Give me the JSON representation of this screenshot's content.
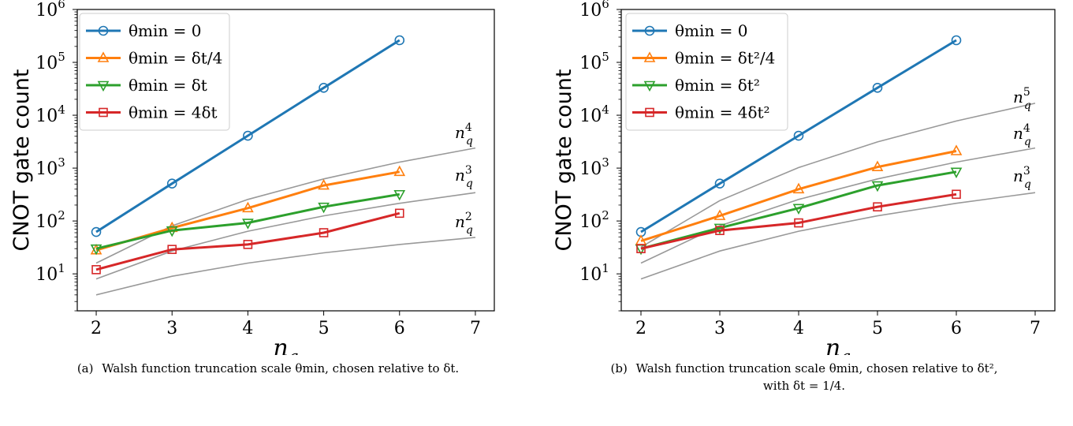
{
  "chart_data": [
    {
      "type": "line",
      "panel": "a",
      "ylabel": "CNOT gate count",
      "xlabel": "n_q",
      "xlim": [
        1.75,
        7.25
      ],
      "yscale": "log",
      "ylim": [
        2,
        1000000
      ],
      "xticks": [
        "2",
        "3",
        "4",
        "5",
        "6",
        "7"
      ],
      "yticks": [
        {
          "base": "10",
          "exp": "1",
          "value": 10
        },
        {
          "base": "10",
          "exp": "2",
          "value": 100
        },
        {
          "base": "10",
          "exp": "3",
          "value": 1000
        },
        {
          "base": "10",
          "exp": "4",
          "value": 10000
        },
        {
          "base": "10",
          "exp": "5",
          "value": 100000
        },
        {
          "base": "10",
          "exp": "6",
          "value": 1000000
        }
      ],
      "legend": "top-left",
      "series": [
        {
          "name": "θmin = 0",
          "color": "#1f77b4",
          "marker": "circle",
          "x": [
            2,
            3,
            4,
            5,
            6
          ],
          "y": [
            62,
            510,
            4100,
            33000,
            262000
          ]
        },
        {
          "name": "θmin = δt/4",
          "color": "#ff7f0e",
          "marker": "triangle-up",
          "x": [
            2,
            3,
            4,
            5,
            6
          ],
          "y": [
            28,
            74,
            175,
            470,
            850
          ]
        },
        {
          "name": "θmin = δt",
          "color": "#2ca02c",
          "marker": "triangle-down",
          "x": [
            2,
            3,
            4,
            5,
            6
          ],
          "y": [
            30,
            66,
            92,
            185,
            320
          ]
        },
        {
          "name": "θmin = 4δt",
          "color": "#d62728",
          "marker": "square",
          "x": [
            2,
            3,
            4,
            5,
            6
          ],
          "y": [
            12,
            29,
            36,
            60,
            140
          ]
        }
      ],
      "reference_curves": [
        {
          "label_base": "n",
          "label_sub": "q",
          "label_exp": "4",
          "color": "#999999",
          "x": [
            2,
            3,
            4,
            5,
            6,
            7
          ],
          "y": [
            16,
            81,
            256,
            625,
            1296,
            2401
          ]
        },
        {
          "label_base": "n",
          "label_sub": "q",
          "label_exp": "3",
          "color": "#999999",
          "x": [
            2,
            3,
            4,
            5,
            6,
            7
          ],
          "y": [
            8,
            27,
            64,
            125,
            216,
            343
          ]
        },
        {
          "label_base": "n",
          "label_sub": "q",
          "label_exp": "2",
          "color": "#999999",
          "x": [
            2,
            3,
            4,
            5,
            6,
            7
          ],
          "y": [
            4,
            9,
            16,
            25,
            36,
            49
          ]
        }
      ],
      "caption_tag": "(a)",
      "caption": "Walsh function truncation scale θmin, chosen relative to δt.",
      "caption_line2": ""
    },
    {
      "type": "line",
      "panel": "b",
      "ylabel": "CNOT gate count",
      "xlabel": "n_q",
      "xlim": [
        1.75,
        7.25
      ],
      "yscale": "log",
      "ylim": [
        2,
        1000000
      ],
      "xticks": [
        "2",
        "3",
        "4",
        "5",
        "6",
        "7"
      ],
      "yticks": [
        {
          "base": "10",
          "exp": "1",
          "value": 10
        },
        {
          "base": "10",
          "exp": "2",
          "value": 100
        },
        {
          "base": "10",
          "exp": "3",
          "value": 1000
        },
        {
          "base": "10",
          "exp": "4",
          "value": 10000
        },
        {
          "base": "10",
          "exp": "5",
          "value": 100000
        },
        {
          "base": "10",
          "exp": "6",
          "value": 1000000
        }
      ],
      "legend": "top-left",
      "series": [
        {
          "name": "θmin = 0",
          "color": "#1f77b4",
          "marker": "circle",
          "x": [
            2,
            3,
            4,
            5,
            6
          ],
          "y": [
            62,
            510,
            4100,
            33000,
            262000
          ]
        },
        {
          "name": "θmin = δt²/4",
          "color": "#ff7f0e",
          "marker": "triangle-up",
          "x": [
            2,
            3,
            4,
            5,
            6
          ],
          "y": [
            42,
            125,
            400,
            1050,
            2100
          ]
        },
        {
          "name": "θmin = δt²",
          "color": "#2ca02c",
          "marker": "triangle-down",
          "x": [
            2,
            3,
            4,
            5,
            6
          ],
          "y": [
            30,
            74,
            175,
            470,
            850
          ]
        },
        {
          "name": "θmin = 4δt²",
          "color": "#d62728",
          "marker": "square",
          "x": [
            2,
            3,
            4,
            5,
            6
          ],
          "y": [
            30,
            66,
            92,
            185,
            320
          ]
        }
      ],
      "reference_curves": [
        {
          "label_base": "n",
          "label_sub": "q",
          "label_exp": "5",
          "color": "#999999",
          "x": [
            2,
            3,
            4,
            5,
            6,
            7
          ],
          "y": [
            32,
            243,
            1024,
            3125,
            7776,
            16807
          ]
        },
        {
          "label_base": "n",
          "label_sub": "q",
          "label_exp": "4",
          "color": "#999999",
          "x": [
            2,
            3,
            4,
            5,
            6,
            7
          ],
          "y": [
            16,
            81,
            256,
            625,
            1296,
            2401
          ]
        },
        {
          "label_base": "n",
          "label_sub": "q",
          "label_exp": "3",
          "color": "#999999",
          "x": [
            2,
            3,
            4,
            5,
            6,
            7
          ],
          "y": [
            8,
            27,
            64,
            125,
            216,
            343
          ]
        }
      ],
      "caption_tag": "(b)",
      "caption": "Walsh function truncation scale θmin, chosen relative to δt²,",
      "caption_line2": "with δt = 1/4."
    }
  ]
}
